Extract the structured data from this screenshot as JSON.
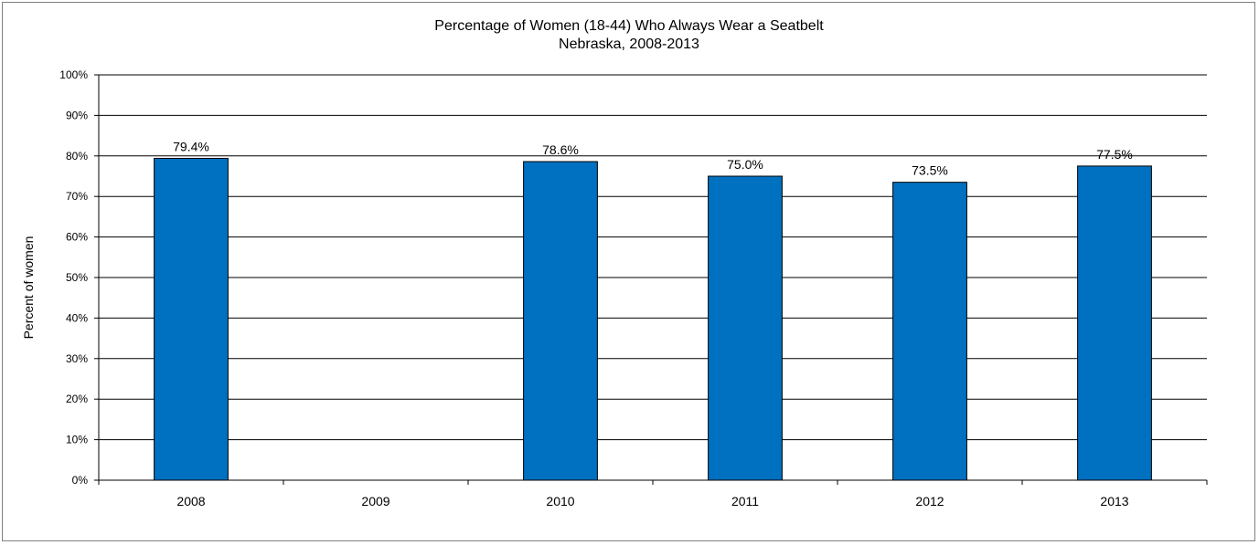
{
  "chart_data": {
    "type": "bar",
    "title": "Percentage of Women (18-44) Who Always Wear a Seatbelt",
    "subtitle": "Nebraska, 2008-2013",
    "xlabel": "",
    "ylabel": "Percent of women",
    "categories": [
      "2008",
      "2009",
      "2010",
      "2011",
      "2012",
      "2013"
    ],
    "values": [
      79.4,
      null,
      78.6,
      75.0,
      73.5,
      77.5
    ],
    "data_labels": [
      "79.4%",
      "",
      "78.6%",
      "75.0%",
      "73.5%",
      "77.5%"
    ],
    "ylim": [
      0,
      100
    ],
    "yticks": [
      0,
      10,
      20,
      30,
      40,
      50,
      60,
      70,
      80,
      90,
      100
    ],
    "ytick_labels": [
      "0%",
      "10%",
      "20%",
      "30%",
      "40%",
      "50%",
      "60%",
      "70%",
      "80%",
      "90%",
      "100%"
    ],
    "grid": true,
    "legend": "none",
    "bar_color": "#0070C0"
  }
}
